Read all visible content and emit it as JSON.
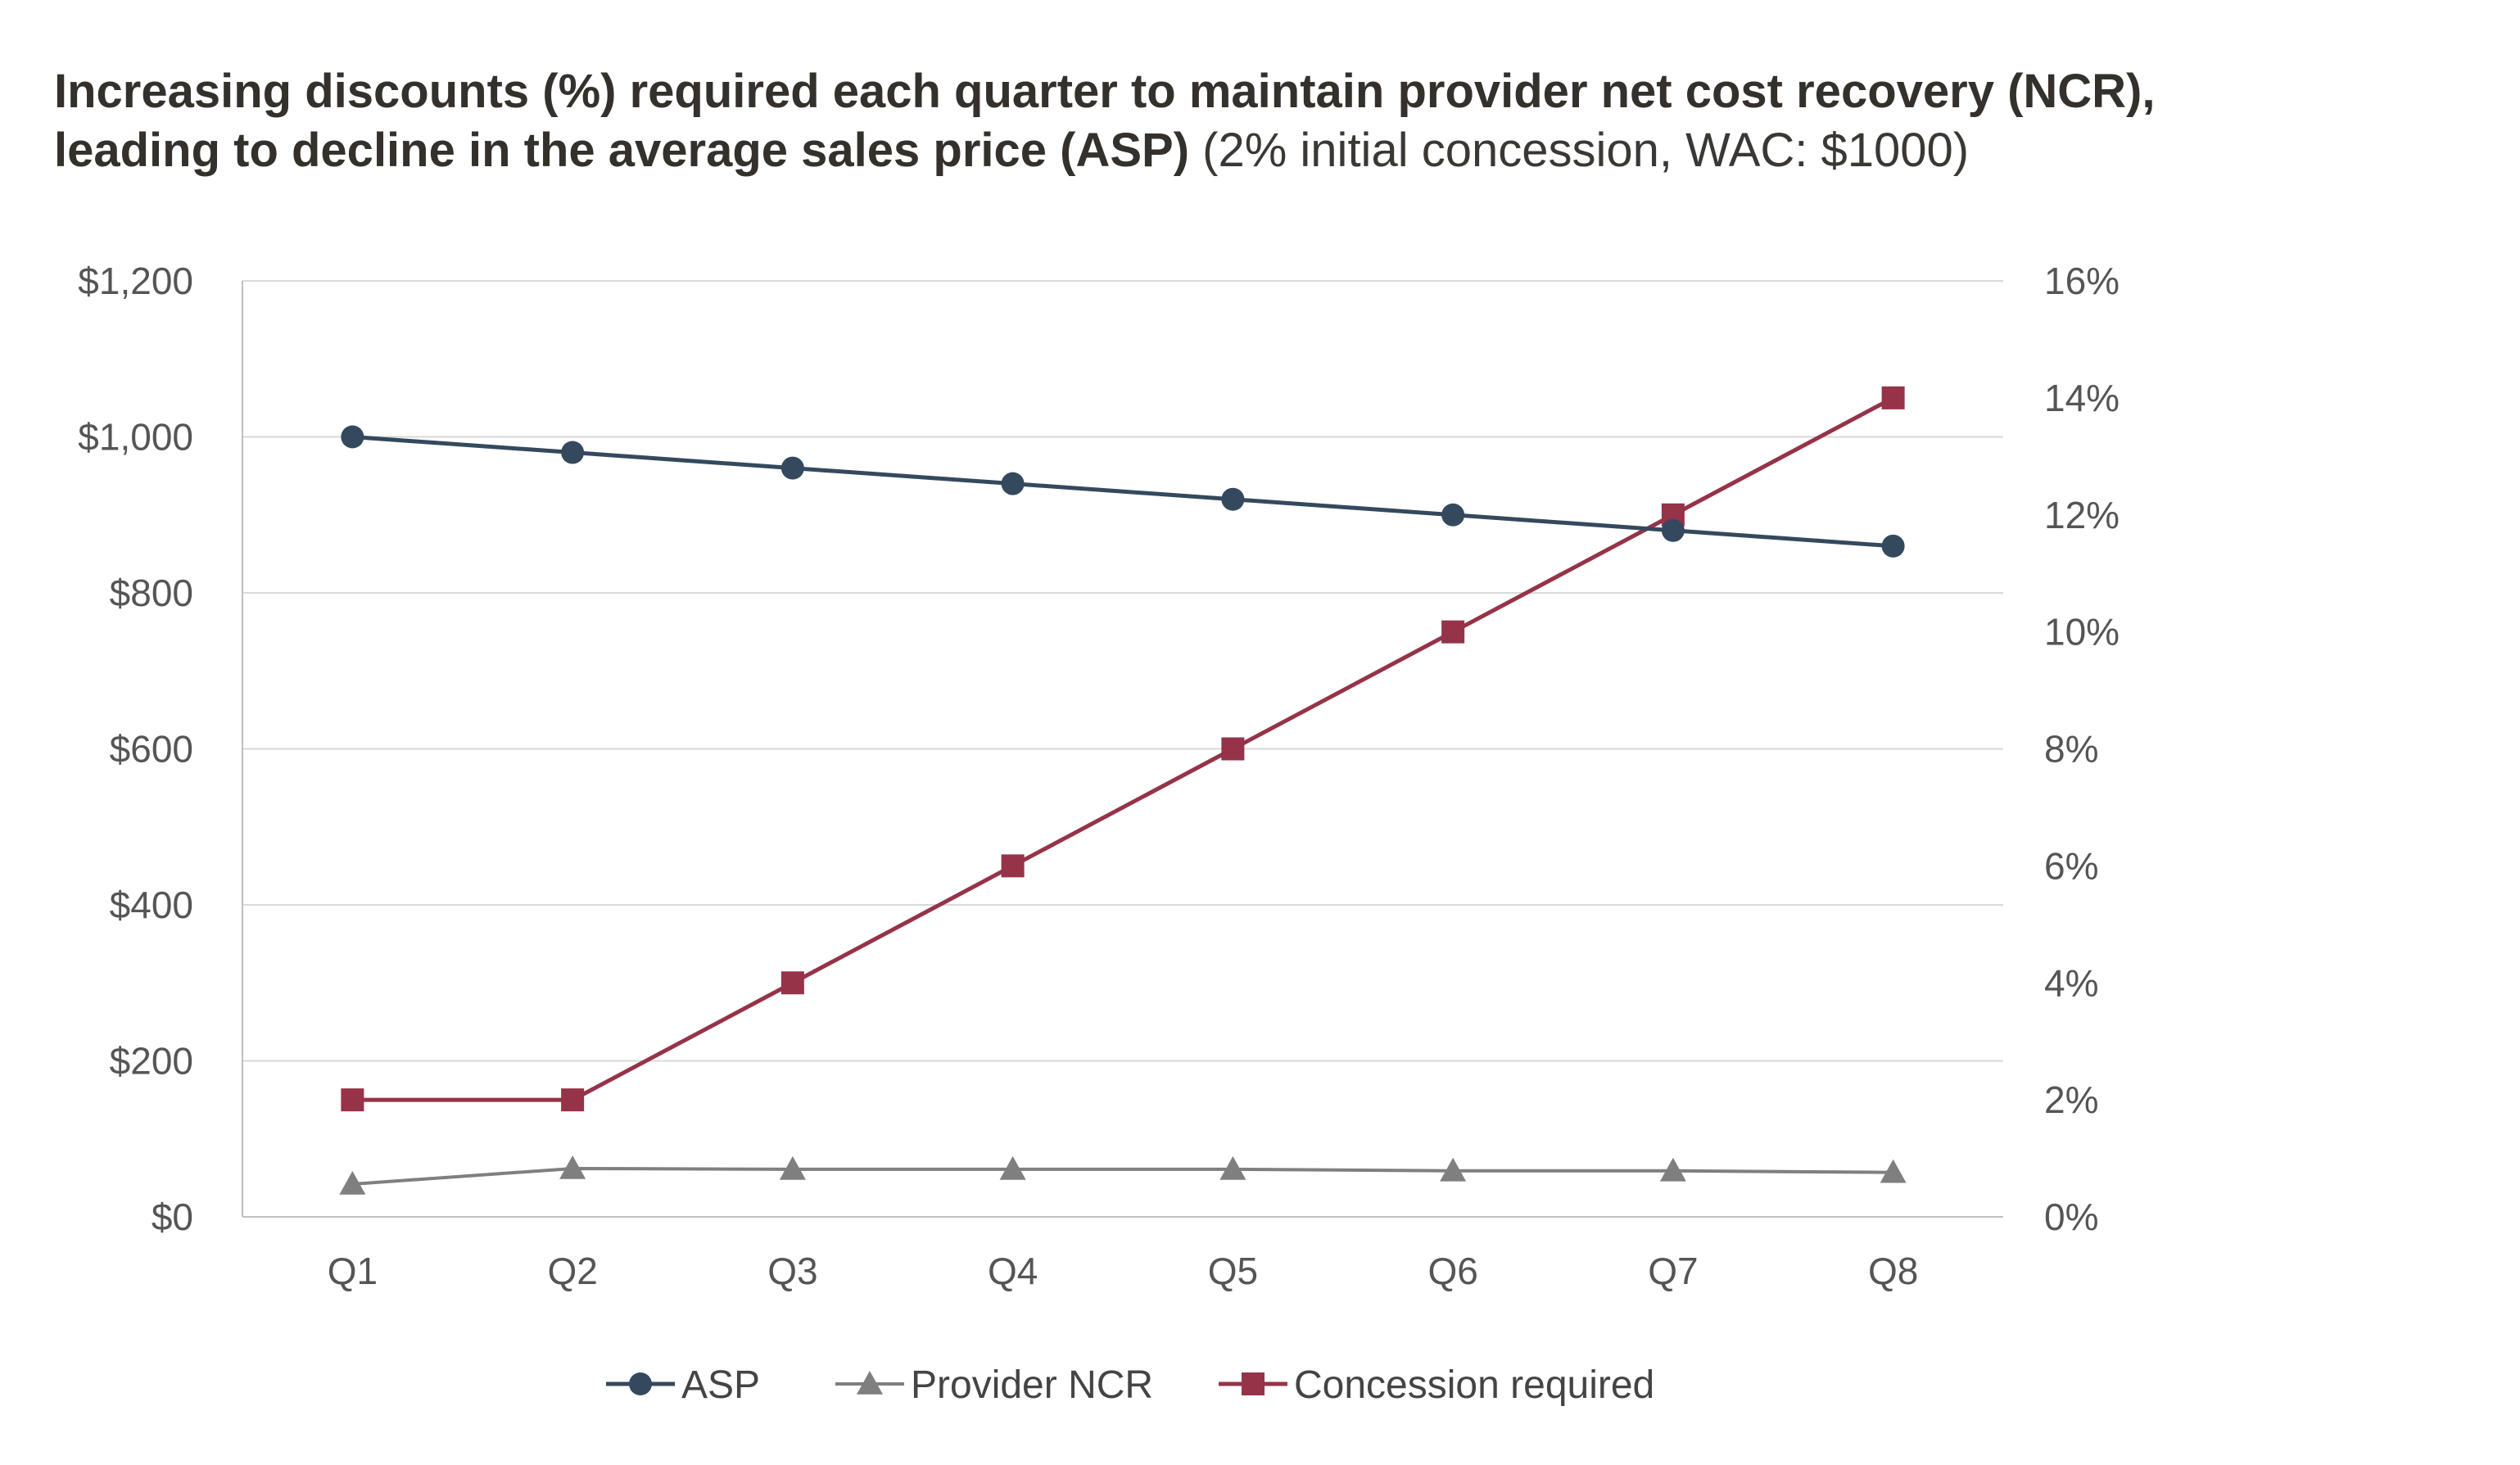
{
  "title": {
    "bold_line1": "Increasing discounts (%) required each quarter to maintain provider net cost recovery (NCR),",
    "bold_line2": "leading to decline in the average sales price (ASP)",
    "light_suffix": "(2% initial concession, WAC: $1000)"
  },
  "chart_data": {
    "type": "line",
    "categories": [
      "Q1",
      "Q2",
      "Q3",
      "Q4",
      "Q5",
      "Q6",
      "Q7",
      "Q8"
    ],
    "left_axis": {
      "ylim": [
        0,
        1200
      ],
      "ticks": [
        0,
        200,
        400,
        600,
        800,
        1000,
        1200
      ],
      "tick_labels": [
        "$0",
        "$200",
        "$400",
        "$600",
        "$800",
        "$1,000",
        "$1,200"
      ]
    },
    "right_axis": {
      "ylim": [
        0,
        16
      ],
      "ticks": [
        0,
        2,
        4,
        6,
        8,
        10,
        12,
        14,
        16
      ],
      "tick_labels": [
        "0%",
        "2%",
        "4%",
        "6%",
        "8%",
        "10%",
        "12%",
        "14%",
        "16%"
      ]
    },
    "grid": true,
    "legend_position": "bottom",
    "series": [
      {
        "name": "ASP",
        "axis": "left",
        "marker": "circle",
        "color": "#34495e",
        "values": [
          1000,
          980,
          960,
          940,
          920,
          900,
          880,
          860
        ]
      },
      {
        "name": "Provider NCR",
        "axis": "left",
        "marker": "triangle",
        "color": "#7f7f7f",
        "values": [
          42,
          62,
          61,
          61,
          61,
          59,
          59,
          57
        ]
      },
      {
        "name": "Concession required",
        "axis": "right",
        "marker": "square",
        "color": "#963348",
        "values": [
          2,
          2,
          4,
          6,
          8,
          10,
          12,
          14
        ]
      }
    ]
  },
  "colors": {
    "grid": "#d9d9d9",
    "axis": "#bfbfbf"
  }
}
